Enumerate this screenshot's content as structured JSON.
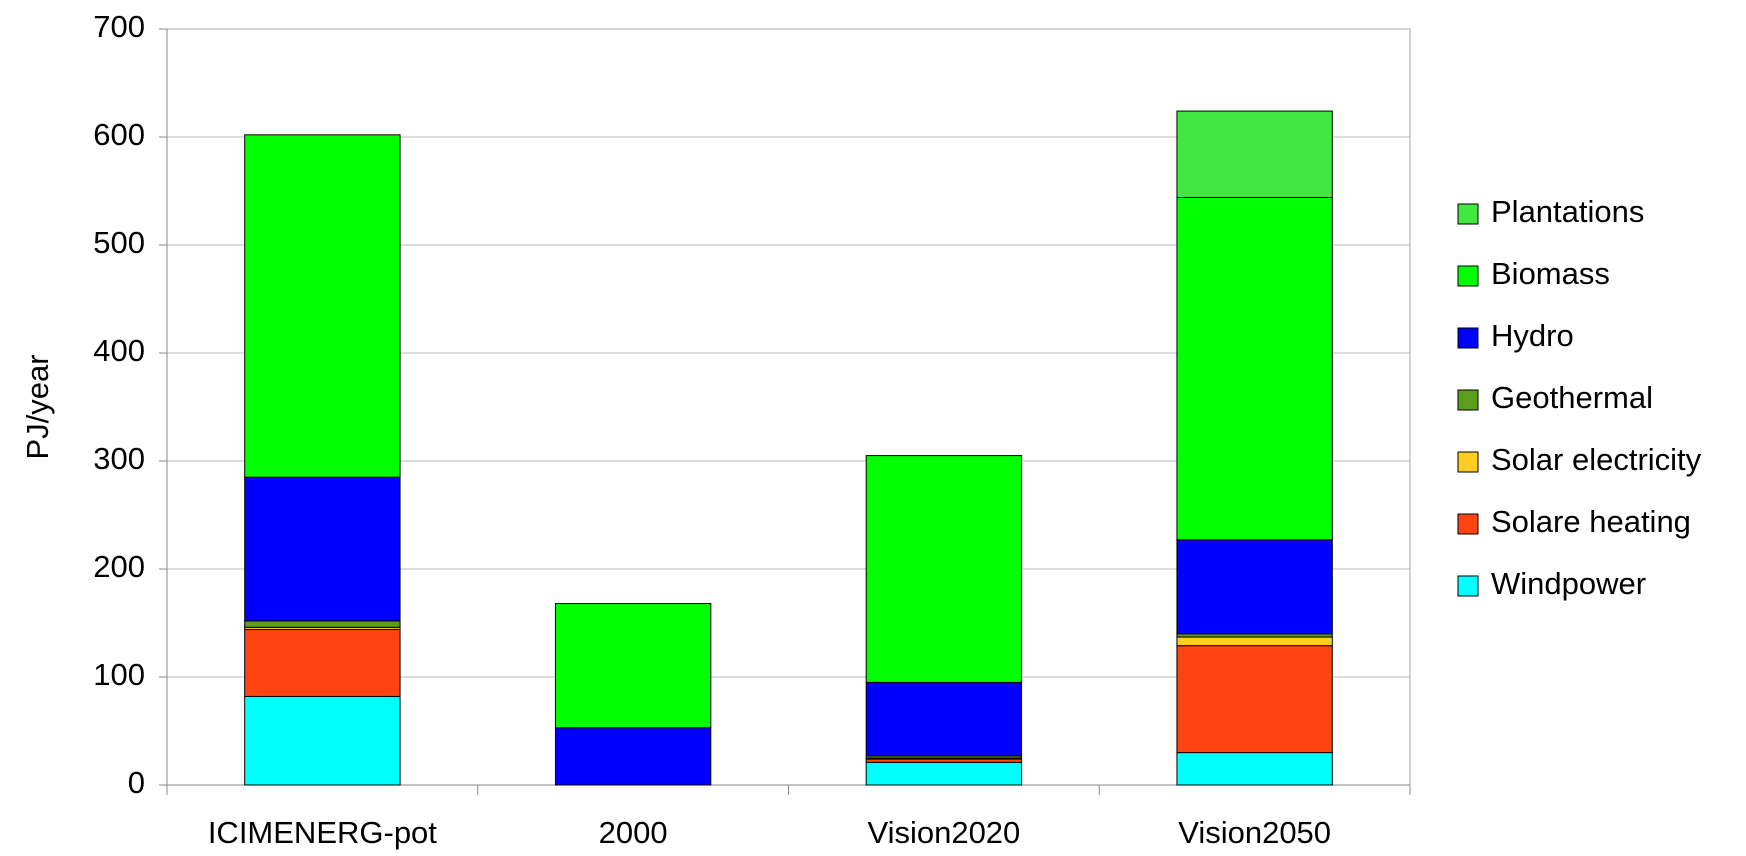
{
  "chart_data": {
    "type": "stacked_bar",
    "y_label": "PJ/year",
    "categories": [
      "ICIMENERG-pot",
      "2000",
      "Vision2020",
      "Vision2050"
    ],
    "series": [
      {
        "name": "Windpower",
        "color": "#00ffff",
        "values": [
          82,
          0,
          21,
          30
        ]
      },
      {
        "name": "Solare heating",
        "color": "#ff4411",
        "values": [
          62,
          0,
          3,
          99
        ]
      },
      {
        "name": "Solar electricity",
        "color": "#ffcc22",
        "values": [
          2,
          0,
          1,
          8
        ]
      },
      {
        "name": "Geothermal",
        "color": "#5a9e1a",
        "values": [
          6,
          0,
          2,
          3
        ]
      },
      {
        "name": "Hydro",
        "color": "#0000ff",
        "values": [
          133,
          53,
          68,
          87
        ]
      },
      {
        "name": "Biomass",
        "color": "#00ff00",
        "values": [
          317,
          115,
          210,
          317
        ]
      },
      {
        "name": "Plantations",
        "color": "#40e840",
        "values": [
          0,
          0,
          0,
          80
        ]
      }
    ],
    "ylim": [
      0,
      700
    ],
    "yticks": [
      0,
      100,
      200,
      300,
      400,
      500,
      600,
      700
    ],
    "grid": true
  }
}
